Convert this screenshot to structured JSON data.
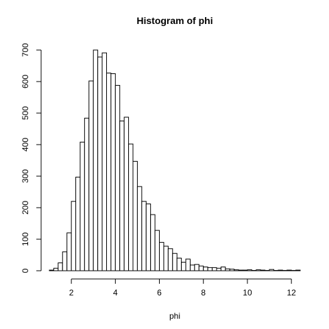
{
  "chart_data": {
    "type": "bar",
    "title": "Histogram of phi",
    "xlabel": "phi",
    "ylabel": "",
    "bins_start": 1.0,
    "bin_width": 0.2,
    "values": [
      2,
      8,
      25,
      60,
      120,
      220,
      297,
      408,
      484,
      602,
      700,
      678,
      691,
      627,
      625,
      588,
      475,
      487,
      402,
      347,
      267,
      220,
      212,
      178,
      128,
      90,
      78,
      70,
      55,
      40,
      27,
      37,
      18,
      20,
      15,
      12,
      10,
      10,
      8,
      12,
      6,
      5,
      3,
      2,
      2,
      3,
      1,
      3,
      2,
      1,
      4,
      1,
      2,
      1,
      2,
      1,
      2
    ],
    "xlim": [
      1.0,
      12.4
    ],
    "ylim": [
      0,
      700
    ],
    "xticks": [
      2,
      4,
      6,
      8,
      10,
      12
    ],
    "yticks": [
      0,
      100,
      200,
      300,
      400,
      500,
      600,
      700
    ]
  }
}
